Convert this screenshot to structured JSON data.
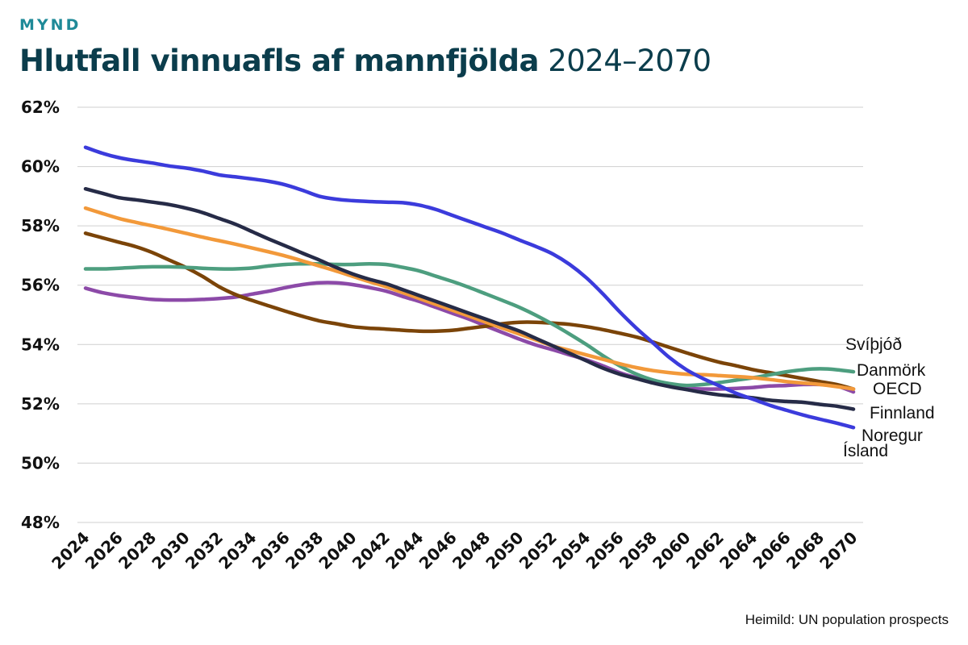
{
  "header": {
    "kicker": "MYND",
    "title_bold": "Hlutfall vinnuafls af mannfjölda",
    "title_light": "2024–2070"
  },
  "source": "Heimild: UN population prospects",
  "chart_data": {
    "type": "line",
    "title": "Hlutfall vinnuafls af mannfjölda 2024–2070",
    "xlabel": "",
    "ylabel": "",
    "x": [
      2024,
      2025,
      2026,
      2027,
      2028,
      2029,
      2030,
      2031,
      2032,
      2033,
      2034,
      2035,
      2036,
      2037,
      2038,
      2039,
      2040,
      2041,
      2042,
      2043,
      2044,
      2045,
      2046,
      2047,
      2048,
      2049,
      2050,
      2051,
      2052,
      2053,
      2054,
      2055,
      2056,
      2057,
      2058,
      2059,
      2060,
      2061,
      2062,
      2063,
      2064,
      2065,
      2066,
      2067,
      2068,
      2069,
      2070
    ],
    "xticks": [
      "2024",
      "2026",
      "2028",
      "2030",
      "2032",
      "2034",
      "2036",
      "2038",
      "2040",
      "2042",
      "2044",
      "2046",
      "2048",
      "2050",
      "2052",
      "2054",
      "2056",
      "2058",
      "2060",
      "2062",
      "2064",
      "2066",
      "2068",
      "2070"
    ],
    "ylim": [
      48,
      62
    ],
    "yticks": [
      48,
      50,
      52,
      54,
      56,
      58,
      60,
      62
    ],
    "ytick_labels": [
      "48%",
      "50%",
      "52%",
      "54%",
      "56%",
      "58%",
      "60%",
      "62%"
    ],
    "grid": true,
    "series": [
      {
        "name": "Noregur",
        "color": "#3b3bdc",
        "values": [
          60.65,
          60.45,
          60.3,
          60.2,
          60.12,
          60.02,
          59.95,
          59.85,
          59.72,
          59.65,
          59.58,
          59.5,
          59.38,
          59.2,
          59.0,
          58.9,
          58.85,
          58.82,
          58.8,
          58.78,
          58.7,
          58.55,
          58.35,
          58.15,
          57.95,
          57.75,
          57.52,
          57.3,
          57.05,
          56.7,
          56.25,
          55.7,
          55.1,
          54.55,
          54.05,
          53.55,
          53.15,
          52.85,
          52.6,
          52.35,
          52.15,
          51.95,
          51.78,
          51.62,
          51.48,
          51.35,
          51.2
        ]
      },
      {
        "name": "Finnland",
        "color": "#262b47",
        "values": [
          59.25,
          59.1,
          58.95,
          58.88,
          58.8,
          58.72,
          58.6,
          58.45,
          58.25,
          58.05,
          57.8,
          57.55,
          57.32,
          57.08,
          56.85,
          56.6,
          56.38,
          56.2,
          56.05,
          55.85,
          55.65,
          55.45,
          55.25,
          55.05,
          54.85,
          54.65,
          54.45,
          54.2,
          53.95,
          53.7,
          53.45,
          53.2,
          53.0,
          52.85,
          52.7,
          52.58,
          52.48,
          52.38,
          52.3,
          52.25,
          52.2,
          52.12,
          52.08,
          52.05,
          51.98,
          51.92,
          51.82
        ]
      },
      {
        "name": "OECD",
        "color": "#f2993a",
        "values": [
          58.6,
          58.42,
          58.25,
          58.12,
          58.0,
          57.88,
          57.75,
          57.62,
          57.5,
          57.38,
          57.25,
          57.12,
          56.98,
          56.82,
          56.65,
          56.48,
          56.3,
          56.12,
          55.95,
          55.75,
          55.55,
          55.35,
          55.15,
          54.95,
          54.75,
          54.55,
          54.35,
          54.15,
          53.95,
          53.8,
          53.65,
          53.5,
          53.35,
          53.22,
          53.12,
          53.05,
          53.0,
          52.98,
          52.95,
          52.92,
          52.88,
          52.82,
          52.75,
          52.7,
          52.65,
          52.58,
          52.5
        ]
      },
      {
        "name": "Ísland",
        "color": "#7b4408",
        "values": [
          57.75,
          57.6,
          57.45,
          57.3,
          57.1,
          56.85,
          56.6,
          56.3,
          55.95,
          55.68,
          55.48,
          55.3,
          55.12,
          54.95,
          54.8,
          54.7,
          54.6,
          54.55,
          54.52,
          54.48,
          54.45,
          54.45,
          54.48,
          54.55,
          54.62,
          54.7,
          54.75,
          54.75,
          54.72,
          54.68,
          54.6,
          54.5,
          54.38,
          54.25,
          54.08,
          53.9,
          53.72,
          53.55,
          53.4,
          53.28,
          53.15,
          53.05,
          52.95,
          52.85,
          52.75,
          52.65,
          52.5
        ]
      },
      {
        "name": "Danmörk",
        "color": "#4d9e7f",
        "values": [
          56.55,
          56.55,
          56.57,
          56.6,
          56.62,
          56.62,
          56.6,
          56.57,
          56.55,
          56.55,
          56.58,
          56.65,
          56.7,
          56.72,
          56.72,
          56.7,
          56.7,
          56.72,
          56.7,
          56.6,
          56.48,
          56.3,
          56.12,
          55.92,
          55.7,
          55.48,
          55.25,
          54.98,
          54.68,
          54.35,
          54.0,
          53.62,
          53.28,
          53.0,
          52.8,
          52.68,
          52.62,
          52.65,
          52.72,
          52.8,
          52.88,
          52.98,
          53.08,
          53.15,
          53.18,
          53.15,
          53.08
        ]
      },
      {
        "name": "Svíþjóð",
        "color": "#8c4aa8",
        "values": [
          55.9,
          55.75,
          55.65,
          55.58,
          55.52,
          55.5,
          55.5,
          55.52,
          55.55,
          55.6,
          55.7,
          55.8,
          55.92,
          56.02,
          56.08,
          56.08,
          56.02,
          55.92,
          55.8,
          55.62,
          55.45,
          55.25,
          55.05,
          54.85,
          54.62,
          54.4,
          54.18,
          53.98,
          53.82,
          53.65,
          53.48,
          53.28,
          53.05,
          52.88,
          52.72,
          52.6,
          52.52,
          52.5,
          52.5,
          52.52,
          52.55,
          52.6,
          52.62,
          52.65,
          52.65,
          52.6,
          52.4
        ]
      }
    ],
    "labels": [
      {
        "text": "Svíþjóð",
        "series": "Svíþjóð"
      },
      {
        "text": "Danmörk",
        "series": "Danmörk"
      },
      {
        "text": "OECD",
        "series": "OECD"
      },
      {
        "text": "Finnland",
        "series": "Finnland"
      },
      {
        "text": "Noregur",
        "series": "Noregur"
      },
      {
        "text": "Ísland",
        "series": "Ísland"
      }
    ]
  }
}
